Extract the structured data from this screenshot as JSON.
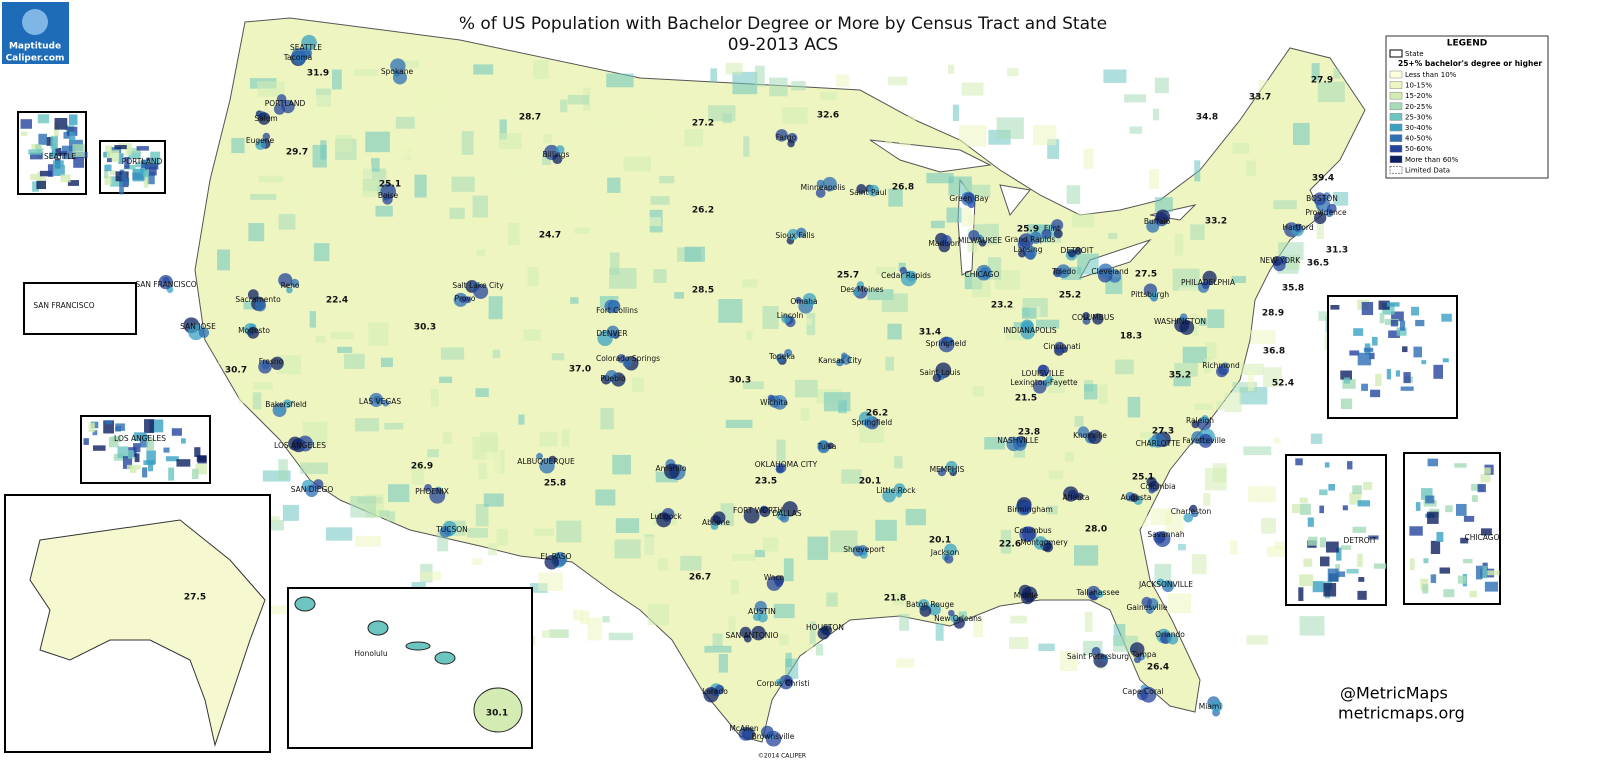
{
  "header": {
    "title": "% of US Population with Bachelor Degree or More by Census Tract and State",
    "subtitle": "09-2013 ACS"
  },
  "logo": {
    "name": "Maptitude",
    "url": "Caliper.com"
  },
  "legend": {
    "title": "LEGEND",
    "state_label": "State",
    "subtitle": "25+% bachelor's degree or higher",
    "items": [
      {
        "label": "Less than 10%",
        "color": "#ffffe0"
      },
      {
        "label": "10-15%",
        "color": "#eef5c0"
      },
      {
        "label": "15-20%",
        "color": "#d4ecb4"
      },
      {
        "label": "20-25%",
        "color": "#a6dbb8"
      },
      {
        "label": "25-30%",
        "color": "#6cc5c0"
      },
      {
        "label": "30-40%",
        "color": "#3aa1c4"
      },
      {
        "label": "40-50%",
        "color": "#2c6fb4"
      },
      {
        "label": "50-60%",
        "color": "#24449c"
      },
      {
        "label": "More than 60%",
        "color": "#0c1f62"
      }
    ],
    "limited": "Limited Data"
  },
  "state_values": [
    "31.9",
    "29.7",
    "25.1",
    "28.7",
    "27.2",
    "32.6",
    "26.8",
    "24.7",
    "26.2",
    "22.4",
    "30.3",
    "28.5",
    "25.7",
    "30.7",
    "37.0",
    "30.3",
    "31.4",
    "23.2",
    "25.2",
    "25.9",
    "21.5",
    "18.3",
    "27.5",
    "33.2",
    "33.7",
    "34.8",
    "27.9",
    "39.4",
    "31.3",
    "36.5",
    "35.8",
    "28.9",
    "36.8",
    "52.4",
    "35.2",
    "26.2",
    "23.8",
    "27.3",
    "20.1",
    "23.5",
    "26.9",
    "25.8",
    "26.7",
    "21.8",
    "20.1",
    "22.6",
    "28.0",
    "25.1",
    "26.4",
    "27.5",
    "30.1"
  ],
  "cities": [
    "SEATTLE",
    "Tacoma",
    "Spokane",
    "PORTLAND",
    "Salem",
    "Eugene",
    "Boise",
    "Billings",
    "Fargo",
    "Minneapolis",
    "Saint Paul",
    "Green Bay",
    "Flint",
    "Madison",
    "MILWAUKEE",
    "Grand Rapids",
    "Lansing",
    "DETROIT",
    "Sioux Falls",
    "Sacramento",
    "Reno",
    "SAN FRANCISCO",
    "SAN JOSE",
    "Modesto",
    "Salt Lake City",
    "Provo",
    "Fort Collins",
    "DENVER",
    "Colorado Springs",
    "Pueblo",
    "Omaha",
    "Lincoln",
    "Des Moines",
    "Cedar Rapids",
    "CHICAGO",
    "Toledo",
    "Cleveland",
    "Pittsburgh",
    "PHILADELPHIA",
    "NEW YORK",
    "Hartford",
    "BOSTON",
    "Providence",
    "Buffalo",
    "WASHINGTON",
    "Richmond",
    "COLUMBUS",
    "INDIANAPOLIS",
    "Cincinnati",
    "Springfield",
    "Saint Louis",
    "LOUISVILLE",
    "Lexington-Fayette",
    "Kansas City",
    "Topeka",
    "Wichita",
    "Springfield",
    "Fresno",
    "Bakersfield",
    "LAS VEGAS",
    "LOS ANGELES",
    "SAN DIEGO",
    "PHOENIX",
    "TUCSON",
    "ALBUQUERQUE",
    "EL PASO",
    "Amarillo",
    "Lubbock",
    "OKLAHOMA CITY",
    "Tulsa",
    "Little Rock",
    "MEMPHIS",
    "NASHVILLE",
    "Knoxville",
    "CHARLOTTE",
    "Raleigh",
    "Fayetteville",
    "Atlanta",
    "Augusta",
    "Columbia",
    "Charleston",
    "Savannah",
    "Birmingham",
    "Columbus",
    "Montgomery",
    "Jackson",
    "Shreveport",
    "FORT WORTH",
    "DALLAS",
    "Abilene",
    "Waco",
    "AUSTIN",
    "SAN ANTONIO",
    "HOUSTON",
    "Baton Rouge",
    "New Orleans",
    "Mobile",
    "Tallahassee",
    "JACKSONVILLE",
    "Gainesville",
    "Orlando",
    "Saint Petersburg",
    "Tampa",
    "Cape Coral",
    "Miami",
    "Laredo",
    "Corpus Christi",
    "McAllen",
    "Brownsville",
    "Honolulu"
  ],
  "inset_labels": [
    "SEATTLE",
    "PORTLAND",
    "SAN FRANCISCO",
    "LOS ANGELES",
    "DETROIT",
    "CHICAGO"
  ],
  "credits": {
    "handle": "@MetricMaps",
    "site": "metricmaps.org",
    "copyright": "©2014 CALIPER"
  }
}
